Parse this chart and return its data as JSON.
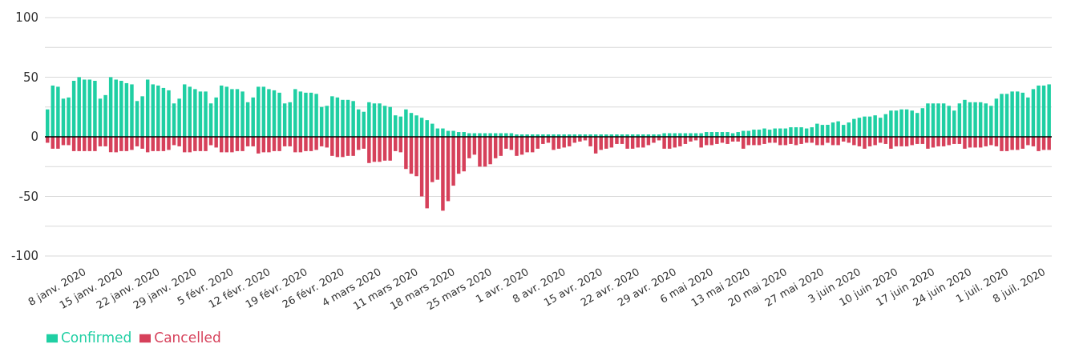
{
  "chart_data": {
    "type": "bar",
    "stacked": true,
    "x": [
      "2020-01-01",
      "2020-01-02",
      "2020-01-03",
      "2020-01-04",
      "2020-01-05",
      "2020-01-06",
      "2020-01-07",
      "2020-01-08",
      "2020-01-09",
      "2020-01-10",
      "2020-01-11",
      "2020-01-12",
      "2020-01-13",
      "2020-01-14",
      "2020-01-15",
      "2020-01-16",
      "2020-01-17",
      "2020-01-18",
      "2020-01-19",
      "2020-01-20",
      "2020-01-21",
      "2020-01-22",
      "2020-01-23",
      "2020-01-24",
      "2020-01-25",
      "2020-01-26",
      "2020-01-27",
      "2020-01-28",
      "2020-01-29",
      "2020-01-30",
      "2020-01-31",
      "2020-02-01",
      "2020-02-02",
      "2020-02-03",
      "2020-02-04",
      "2020-02-05",
      "2020-02-06",
      "2020-02-07",
      "2020-02-08",
      "2020-02-09",
      "2020-02-10",
      "2020-02-11",
      "2020-02-12",
      "2020-02-13",
      "2020-02-14",
      "2020-02-15",
      "2020-02-16",
      "2020-02-17",
      "2020-02-18",
      "2020-02-19",
      "2020-02-20",
      "2020-02-21",
      "2020-02-22",
      "2020-02-23",
      "2020-02-24",
      "2020-02-25",
      "2020-02-26",
      "2020-02-27",
      "2020-02-28",
      "2020-02-29",
      "2020-03-01",
      "2020-03-02",
      "2020-03-03",
      "2020-03-04",
      "2020-03-05",
      "2020-03-06",
      "2020-03-07",
      "2020-03-08",
      "2020-03-09",
      "2020-03-10",
      "2020-03-11",
      "2020-03-12",
      "2020-03-13",
      "2020-03-14",
      "2020-03-15",
      "2020-03-16",
      "2020-03-17",
      "2020-03-18",
      "2020-03-19",
      "2020-03-20",
      "2020-03-21",
      "2020-03-22",
      "2020-03-23",
      "2020-03-24",
      "2020-03-25",
      "2020-03-26",
      "2020-03-27",
      "2020-03-28",
      "2020-03-29",
      "2020-03-30",
      "2020-03-31",
      "2020-04-01",
      "2020-04-02",
      "2020-04-03",
      "2020-04-04",
      "2020-04-05",
      "2020-04-06",
      "2020-04-07",
      "2020-04-08",
      "2020-04-09",
      "2020-04-10",
      "2020-04-11",
      "2020-04-12",
      "2020-04-13",
      "2020-04-14",
      "2020-04-15",
      "2020-04-16",
      "2020-04-17",
      "2020-04-18",
      "2020-04-19",
      "2020-04-20",
      "2020-04-21",
      "2020-04-22",
      "2020-04-23",
      "2020-04-24",
      "2020-04-25",
      "2020-04-26",
      "2020-04-27",
      "2020-04-28",
      "2020-04-29",
      "2020-04-30",
      "2020-05-01",
      "2020-05-02",
      "2020-05-03",
      "2020-05-04",
      "2020-05-05",
      "2020-05-06",
      "2020-05-07",
      "2020-05-08",
      "2020-05-09",
      "2020-05-10",
      "2020-05-11",
      "2020-05-12",
      "2020-05-13",
      "2020-05-14",
      "2020-05-15",
      "2020-05-16",
      "2020-05-17",
      "2020-05-18",
      "2020-05-19",
      "2020-05-20",
      "2020-05-21",
      "2020-05-22",
      "2020-05-23",
      "2020-05-24",
      "2020-05-25",
      "2020-05-26",
      "2020-05-27",
      "2020-05-28",
      "2020-05-29",
      "2020-05-30",
      "2020-05-31",
      "2020-06-01",
      "2020-06-02",
      "2020-06-03",
      "2020-06-04",
      "2020-06-05",
      "2020-06-06",
      "2020-06-07",
      "2020-06-08",
      "2020-06-09",
      "2020-06-10",
      "2020-06-11",
      "2020-06-12",
      "2020-06-13",
      "2020-06-14",
      "2020-06-15",
      "2020-06-16",
      "2020-06-17",
      "2020-06-18",
      "2020-06-19",
      "2020-06-20",
      "2020-06-21",
      "2020-06-22",
      "2020-06-23",
      "2020-06-24",
      "2020-06-25",
      "2020-06-26",
      "2020-06-27",
      "2020-06-28",
      "2020-06-29",
      "2020-06-30",
      "2020-07-01",
      "2020-07-02",
      "2020-07-03",
      "2020-07-04",
      "2020-07-05",
      "2020-07-06",
      "2020-07-07",
      "2020-07-08",
      "2020-07-09"
    ],
    "series": [
      {
        "name": "Confirmed",
        "color": "#1fcfa3",
        "values": [
          23,
          43,
          42,
          32,
          33,
          47,
          50,
          48,
          48,
          47,
          32,
          35,
          50,
          48,
          47,
          45,
          44,
          30,
          34,
          48,
          44,
          43,
          41,
          39,
          28,
          32,
          44,
          42,
          40,
          38,
          38,
          28,
          33,
          43,
          42,
          40,
          40,
          38,
          29,
          33,
          42,
          42,
          40,
          39,
          37,
          28,
          29,
          40,
          38,
          37,
          37,
          36,
          25,
          26,
          34,
          33,
          31,
          31,
          30,
          23,
          21,
          29,
          28,
          28,
          26,
          25,
          18,
          17,
          23,
          20,
          18,
          16,
          14,
          11,
          7,
          7,
          5,
          5,
          4,
          4,
          3,
          3,
          3,
          3,
          3,
          3,
          3,
          3,
          3,
          2,
          2,
          2,
          2,
          2,
          2,
          2,
          2,
          2,
          2,
          2,
          2,
          2,
          2,
          2,
          2,
          2,
          2,
          2,
          2,
          2,
          2,
          2,
          2,
          2,
          2,
          2,
          2,
          3,
          3,
          3,
          3,
          3,
          3,
          3,
          3,
          4,
          4,
          4,
          4,
          4,
          3,
          4,
          5,
          5,
          6,
          6,
          7,
          6,
          7,
          7,
          7,
          8,
          8,
          8,
          7,
          8,
          11,
          10,
          10,
          12,
          13,
          10,
          12,
          15,
          16,
          17,
          17,
          18,
          16,
          19,
          22,
          22,
          23,
          23,
          22,
          20,
          24,
          28,
          28,
          28,
          28,
          26,
          22,
          28,
          31,
          29,
          29,
          29,
          28,
          26,
          32,
          36,
          36,
          38,
          38,
          37,
          33,
          40,
          43,
          43,
          44
        ]
      },
      {
        "name": "Cancelled",
        "color": "#d6405a",
        "values": [
          -5,
          -10,
          -10,
          -7,
          -7,
          -12,
          -12,
          -12,
          -12,
          -12,
          -8,
          -8,
          -13,
          -13,
          -12,
          -12,
          -11,
          -8,
          -10,
          -13,
          -12,
          -12,
          -12,
          -11,
          -7,
          -8,
          -13,
          -13,
          -12,
          -12,
          -12,
          -7,
          -9,
          -13,
          -13,
          -13,
          -12,
          -12,
          -8,
          -8,
          -14,
          -13,
          -13,
          -12,
          -12,
          -8,
          -8,
          -13,
          -13,
          -12,
          -12,
          -11,
          -8,
          -9,
          -16,
          -17,
          -17,
          -16,
          -16,
          -11,
          -10,
          -22,
          -21,
          -21,
          -20,
          -20,
          -12,
          -13,
          -27,
          -31,
          -33,
          -50,
          -60,
          -38,
          -36,
          -62,
          -54,
          -41,
          -31,
          -29,
          -18,
          -15,
          -25,
          -25,
          -23,
          -18,
          -16,
          -10,
          -11,
          -16,
          -15,
          -13,
          -13,
          -10,
          -6,
          -5,
          -11,
          -10,
          -9,
          -8,
          -5,
          -4,
          -3,
          -8,
          -14,
          -11,
          -10,
          -9,
          -6,
          -6,
          -10,
          -10,
          -9,
          -9,
          -7,
          -5,
          -3,
          -10,
          -10,
          -9,
          -8,
          -6,
          -4,
          -3,
          -9,
          -7,
          -7,
          -6,
          -5,
          -6,
          -4,
          -4,
          -10,
          -7,
          -7,
          -7,
          -6,
          -5,
          -5,
          -7,
          -7,
          -6,
          -7,
          -6,
          -5,
          -5,
          -7,
          -7,
          -5,
          -7,
          -7,
          -4,
          -5,
          -7,
          -8,
          -10,
          -8,
          -7,
          -5,
          -6,
          -10,
          -8,
          -8,
          -8,
          -7,
          -6,
          -6,
          -10,
          -9,
          -8,
          -8,
          -7,
          -6,
          -6,
          -10,
          -9,
          -9,
          -9,
          -8,
          -7,
          -8,
          -12,
          -12,
          -11,
          -11,
          -10,
          -7,
          -8,
          -12,
          -11,
          -11
        ]
      }
    ],
    "xlim": [
      "2019-12-31T12:00",
      "2020-07-09T12:00"
    ],
    "xticks": [
      {
        "value": "2020-01-08",
        "label": "8 janv. 2020"
      },
      {
        "value": "2020-01-15",
        "label": "15 janv. 2020"
      },
      {
        "value": "2020-01-22",
        "label": "22 janv. 2020"
      },
      {
        "value": "2020-01-29",
        "label": "29 janv. 2020"
      },
      {
        "value": "2020-02-05",
        "label": "5 févr. 2020"
      },
      {
        "value": "2020-02-12",
        "label": "12 févr. 2020"
      },
      {
        "value": "2020-02-19",
        "label": "19 févr. 2020"
      },
      {
        "value": "2020-02-26",
        "label": "26 févr. 2020"
      },
      {
        "value": "2020-03-04",
        "label": "4 mars 2020"
      },
      {
        "value": "2020-03-11",
        "label": "11 mars 2020"
      },
      {
        "value": "2020-03-18",
        "label": "18 mars 2020"
      },
      {
        "value": "2020-03-25",
        "label": "25 mars 2020"
      },
      {
        "value": "2020-04-01",
        "label": "1 avr. 2020"
      },
      {
        "value": "2020-04-08",
        "label": "8 avr. 2020"
      },
      {
        "value": "2020-04-15",
        "label": "15 avr. 2020"
      },
      {
        "value": "2020-04-22",
        "label": "22 avr. 2020"
      },
      {
        "value": "2020-04-29",
        "label": "29 avr. 2020"
      },
      {
        "value": "2020-05-06",
        "label": "6 mai 2020"
      },
      {
        "value": "2020-05-13",
        "label": "13 mai 2020"
      },
      {
        "value": "2020-05-20",
        "label": "20 mai 2020"
      },
      {
        "value": "2020-05-27",
        "label": "27 mai 2020"
      },
      {
        "value": "2020-06-03",
        "label": "3 juin 2020"
      },
      {
        "value": "2020-06-10",
        "label": "10 juin 2020"
      },
      {
        "value": "2020-06-17",
        "label": "17 juin 2020"
      },
      {
        "value": "2020-06-24",
        "label": "24 juin 2020"
      },
      {
        "value": "2020-07-01",
        "label": "1 juil. 2020"
      },
      {
        "value": "2020-07-08",
        "label": "8 juil. 2020"
      }
    ],
    "ylim": [
      -100,
      100
    ],
    "yticks": [
      -100,
      {
        "value": -75,
        "label": null
      },
      -50,
      {
        "value": -25,
        "label": null
      },
      0,
      {
        "value": 25,
        "label": null
      },
      50,
      {
        "value": 75,
        "label": null
      },
      100
    ],
    "grid": "y",
    "ref_lines": [
      {
        "axis": "y",
        "value": 0,
        "color": "#000000"
      }
    ],
    "legend": "bottom left"
  }
}
